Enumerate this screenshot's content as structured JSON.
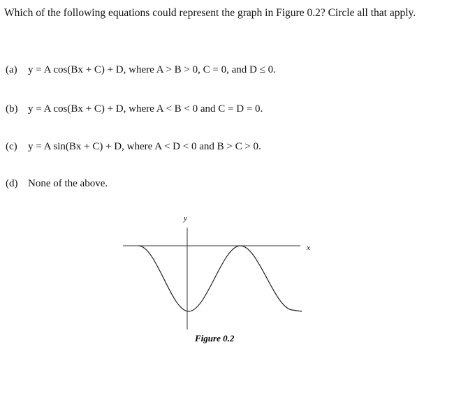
{
  "question": "Which of the following equations could represent the graph in Figure 0.2? Circle all that apply.",
  "options": [
    {
      "label": "(a)",
      "text": "y = A cos(Bx + C) + D, where A > B > 0, C = 0, and D ≤ 0."
    },
    {
      "label": "(b)",
      "text": "y = A cos(Bx + C) + D, where A < B < 0 and C = D = 0."
    },
    {
      "label": "(c)",
      "text": "y = A sin(Bx + C) + D, where A < D < 0 and B > C > 0."
    },
    {
      "label": "(d)",
      "text": "None of the above."
    }
  ],
  "figure": {
    "y_label": "y",
    "x_label": "x",
    "caption": "Figure 0.2"
  }
}
